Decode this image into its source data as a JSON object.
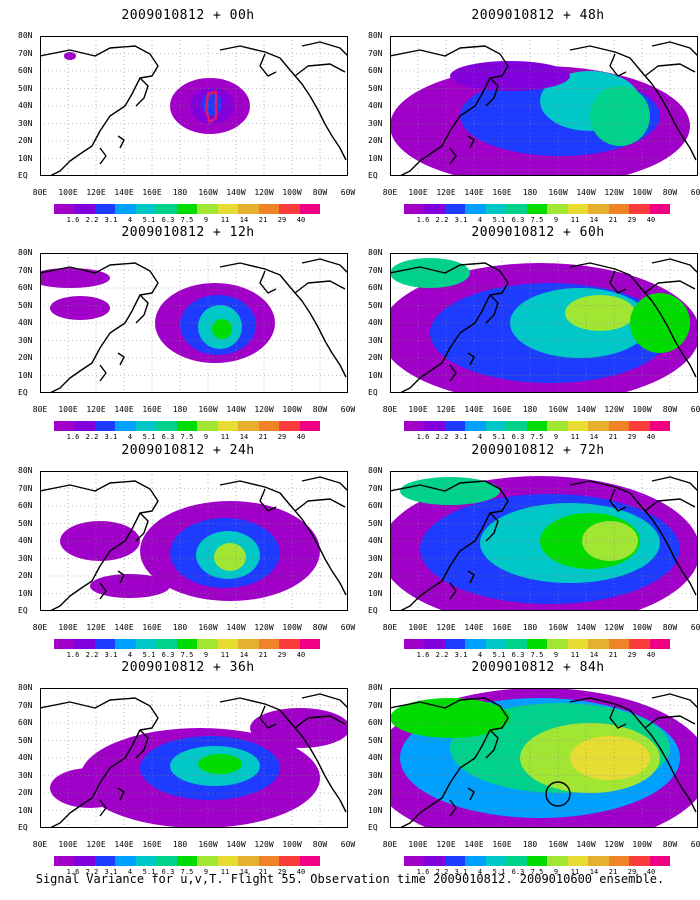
{
  "panels": [
    {
      "id": "p00",
      "title": "2009010812 + 00h",
      "col": 0,
      "row": 0,
      "level": 0
    },
    {
      "id": "p12",
      "title": "2009010812 + 12h",
      "col": 0,
      "row": 1,
      "level": 1
    },
    {
      "id": "p24",
      "title": "2009010812 + 24h",
      "col": 0,
      "row": 2,
      "level": 2
    },
    {
      "id": "p36",
      "title": "2009010812 + 36h",
      "col": 0,
      "row": 3,
      "level": 3
    },
    {
      "id": "p48",
      "title": "2009010812 + 48h",
      "col": 1,
      "row": 0,
      "level": 4
    },
    {
      "id": "p60",
      "title": "2009010812 + 60h",
      "col": 1,
      "row": 1,
      "level": 5
    },
    {
      "id": "p72",
      "title": "2009010812 + 72h",
      "col": 1,
      "row": 2,
      "level": 6
    },
    {
      "id": "p84",
      "title": "2009010812 + 84h",
      "col": 1,
      "row": 3,
      "level": 7
    }
  ],
  "x_ticks": [
    "80E",
    "100E",
    "120E",
    "140E",
    "160E",
    "180",
    "160W",
    "140W",
    "120W",
    "100W",
    "80W",
    "60W"
  ],
  "y_ticks": [
    "80N",
    "70N",
    "60N",
    "50N",
    "40N",
    "30N",
    "20N",
    "10N",
    "EQ"
  ],
  "colorbar": {
    "labels": [
      "1.6",
      "2.2",
      "3.1",
      "4",
      "5.1",
      "6.3",
      "7.5",
      "9",
      "11",
      "14",
      "21",
      "29",
      "40"
    ],
    "colors": [
      "#a000c8",
      "#8200dc",
      "#1e3cff",
      "#00a0ff",
      "#00c8c8",
      "#00d28c",
      "#00dc00",
      "#a0e632",
      "#e6dc32",
      "#e6af2d",
      "#f08228",
      "#fa3c3c",
      "#f00082"
    ]
  },
  "footer": "Signal Variance for u,v,T. Flight 55. Observation time 2009010812. 2009010600 ensemble."
}
